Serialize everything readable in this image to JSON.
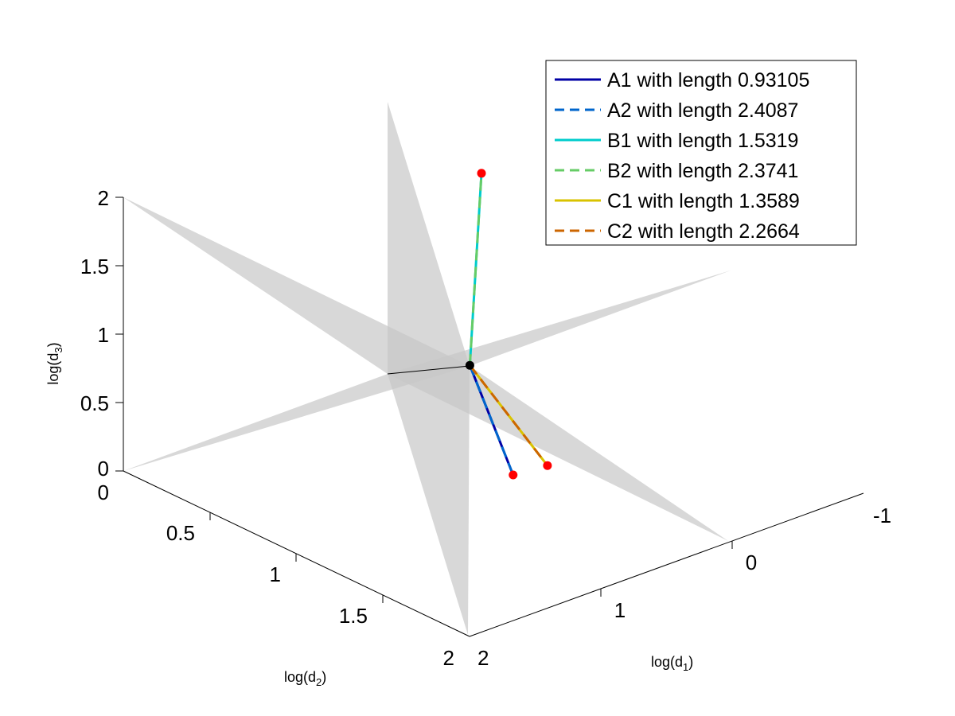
{
  "chart_data": {
    "type": "line",
    "title": "",
    "view": "3d",
    "grid": false,
    "legend_placement": "top-right",
    "axes": {
      "x": {
        "label": "log(d",
        "label_sub": "1",
        "label_close": ")",
        "range": [
          -1,
          2
        ],
        "ticks": [
          "-1",
          "0",
          "1",
          "2"
        ]
      },
      "y": {
        "label": "log(d",
        "label_sub": "2",
        "label_close": ")",
        "range": [
          0,
          2
        ],
        "ticks": [
          "0",
          "0.5",
          "1",
          "1.5",
          "2"
        ]
      },
      "z": {
        "label": "log(d",
        "label_sub": "3",
        "label_close": ")",
        "range": [
          0,
          2
        ],
        "ticks": [
          "0",
          "0.5",
          "1",
          "1.5",
          "2"
        ]
      }
    },
    "center_point": {
      "x": 0.35,
      "y": 0.75,
      "z": 0.65,
      "color": "#000000"
    },
    "end_points": [
      {
        "x": 0.35,
        "y": 1.0,
        "z": 0.0,
        "color": "#ff0000"
      },
      {
        "x": -0.2,
        "y": 0.4,
        "z": 1.65,
        "color": "#ff0000"
      },
      {
        "x": 0.55,
        "y": 1.35,
        "z": 0.35,
        "color": "#ff0000"
      }
    ],
    "series": [
      {
        "name": "A1 with length 0.93105",
        "color": "#0000a6",
        "dash": "solid",
        "from": "center",
        "to": 0
      },
      {
        "name": "A2 with length 2.4087",
        "color": "#0066cc",
        "dash": "dashed",
        "from": "center",
        "to": 0
      },
      {
        "name": "B1 with length 1.5319",
        "color": "#00cccc",
        "dash": "solid",
        "from": "center",
        "to": 1
      },
      {
        "name": "B2 with length 2.3741",
        "color": "#66cc66",
        "dash": "dashed",
        "from": "center",
        "to": 1
      },
      {
        "name": "C1 with length 1.3589",
        "color": "#d9c300",
        "dash": "solid",
        "from": "center",
        "to": 2
      },
      {
        "name": "C2 with length 2.2664",
        "color": "#cc6600",
        "dash": "dashed",
        "from": "center",
        "to": 2
      }
    ],
    "planes_color": "#c8c8c8",
    "intersection_line_color": "#000000"
  }
}
